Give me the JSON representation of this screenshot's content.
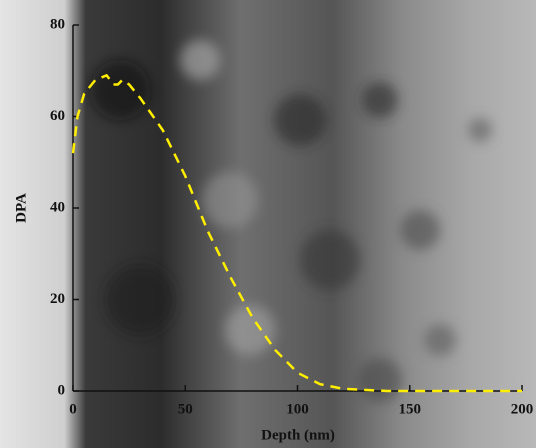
{
  "chart_data": {
    "type": "line",
    "x_label": "Depth (nm)",
    "y_label": "DPA",
    "x": [
      0,
      2,
      5,
      10,
      15,
      18,
      20,
      22,
      25,
      30,
      40,
      50,
      60,
      70,
      80,
      90,
      100,
      110,
      120,
      140,
      160,
      200
    ],
    "values": [
      52,
      60,
      65,
      68,
      69,
      67,
      67,
      68,
      67,
      64,
      57,
      47,
      35,
      25,
      16,
      9,
      4,
      1.5,
      0.5,
      0,
      0,
      0
    ],
    "color": "#ffee00",
    "dashed": true,
    "xlim": [
      0,
      200
    ],
    "xticks": [
      0,
      50,
      100,
      150,
      200
    ],
    "ylim": [
      0,
      80
    ],
    "yticks": [
      0,
      20,
      40,
      60,
      80
    ]
  }
}
